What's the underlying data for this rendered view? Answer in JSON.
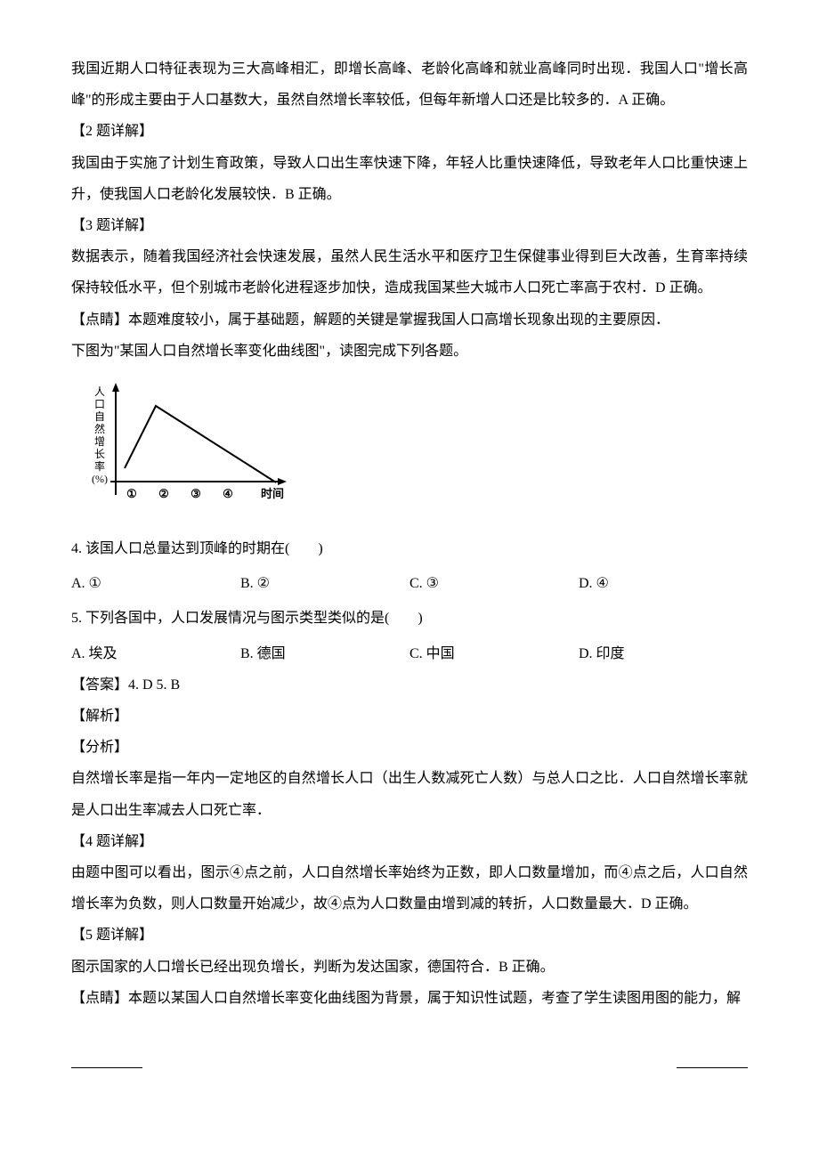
{
  "p1": "我国近期人口特征表现为三大高峰相汇，即增长高峰、老龄化高峰和就业高峰同时出现．我国人口\"增长高峰\"的形成主要由于人口基数大，虽然自然增长率较低，但每年新增人口还是比较多的．A 正确。",
  "h2": "【2 题详解】",
  "p2": "我国由于实施了计划生育政策，导致人口出生率快速下降，年轻人比重快速降低，导致老年人口比重快速上升，使我国人口老龄化发展较快．B 正确。",
  "h3": "【3 题详解】",
  "p3": "数据表示，随着我国经济社会快速发展，虽然人民生活水平和医疗卫生保健事业得到巨大改善，生育率持续保持较低水平，但个别城市老龄化进程逐步加快，造成我国某些大城市人口死亡率高于农村．D 正确。",
  "tip1": "【点睛】本题难度较小，属于基础题，解题的关键是掌握我国人口高增长现象出现的主要原因．",
  "fig_intro": "下图为\"某国人口自然增长率变化曲线图\"，读图完成下列各题。",
  "chart": {
    "y_label_chars": [
      "人",
      "口",
      "自",
      "然",
      "增",
      "长",
      "率",
      "(%)"
    ],
    "x_label": "时间",
    "x_ticks": [
      "①",
      "②",
      "③",
      "④"
    ],
    "axis_color": "#000000",
    "line_color": "#000000",
    "line_width": 2,
    "points": [
      [
        10,
        100
      ],
      [
        45,
        30
      ],
      [
        155,
        100
      ],
      [
        180,
        116
      ]
    ]
  },
  "q4": {
    "stem": "4. 该国人口总量达到顶峰的时期在(　　)",
    "opts": {
      "A": "A. ①",
      "B": "B. ②",
      "C": "C. ③",
      "D": "D. ④"
    }
  },
  "q5": {
    "stem": "5. 下列各国中，人口发展情况与图示类型类似的是(　　)",
    "opts": {
      "A": "A. 埃及",
      "B": "B. 德国",
      "C": "C. 中国",
      "D": "D. 印度"
    }
  },
  "ans": "【答案】4. D    5. B",
  "jx": "【解析】",
  "fx": "【分析】",
  "p_fx": "自然增长率是指一年内一定地区的自然增长人口（出生人数减死亡人数）与总人口之比．人口自然增长率就是人口出生率减去人口死亡率．",
  "h4d": "【4 题详解】",
  "p4d": "由题中图可以看出，图示④点之前，人口自然增长率始终为正数，即人口数量增加，而④点之后，人口自然增长率为负数，则人口数量开始减少，故④点为人口数量由增到减的转折，人口数量最大．D 正确。",
  "h5d": "【5 题详解】",
  "p5d": "图示国家的人口增长已经出现负增长，判断为发达国家，德国符合．B 正确。",
  "tip2": "【点睛】本题以某国人口自然增长率变化曲线图为背景，属于知识性试题，考查了学生读图用图的能力，解"
}
